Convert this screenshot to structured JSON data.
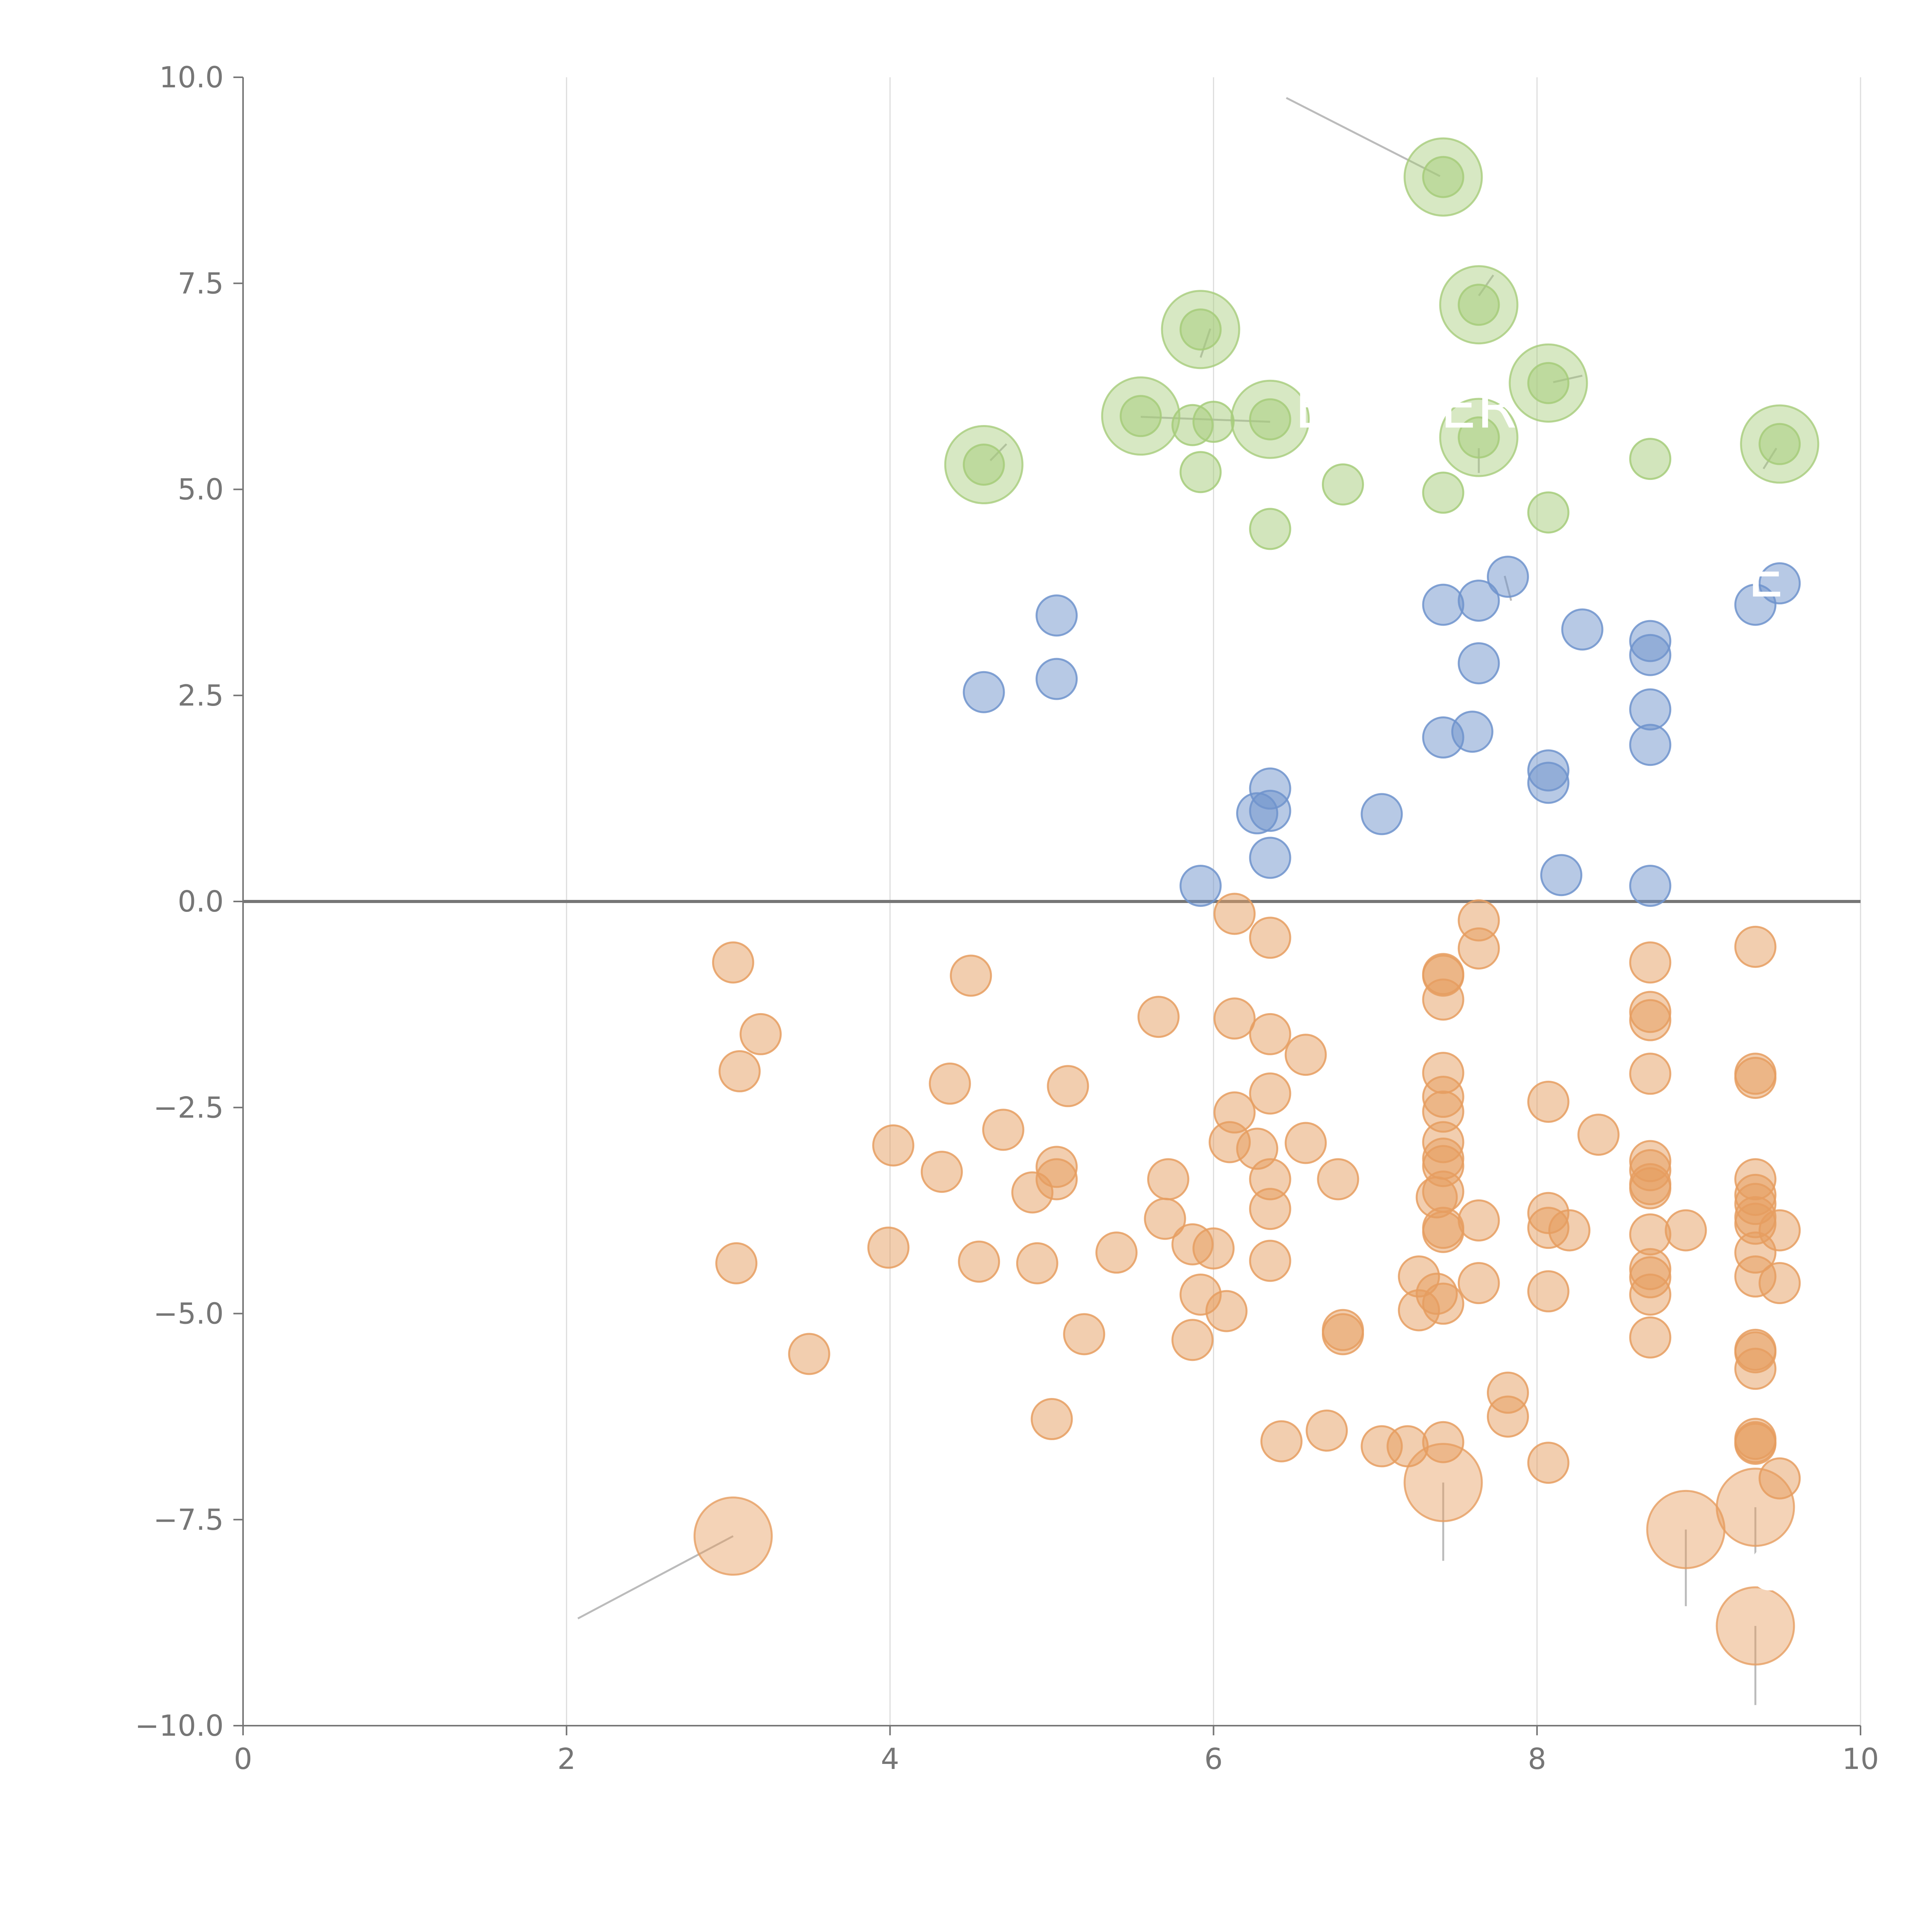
{
  "chart_data": {
    "type": "scatter",
    "title": "",
    "xlabel": "",
    "ylabel": "",
    "xlim": [
      0,
      10
    ],
    "ylim": [
      -10,
      10
    ],
    "grid": "vertical",
    "x_ticks": [
      0,
      2,
      4,
      6,
      8,
      10
    ],
    "x_tick_labels": [
      "0",
      "2",
      "4",
      "6",
      "8",
      "10"
    ],
    "y_ticks": [
      10,
      7.5,
      5,
      2.5,
      0,
      -2.5,
      -5,
      -7.5,
      -10
    ],
    "y_tick_labels": [
      "10.0",
      "7.5",
      "5.0",
      "2.5",
      "0.0",
      "−2.5",
      "−5.0",
      "−7.5",
      "−10.0"
    ],
    "colors": {
      "green": "#a6cc7a",
      "blue": "#6f93cc",
      "orange": "#e69e60",
      "grid": "#dddddd",
      "axis": "#767676",
      "zero_line": "#767676",
      "leader": "#bbbbbb"
    },
    "series": [
      {
        "name": "green",
        "color": "#a6cc7a",
        "points": [
          [
            7.42,
            8.79
          ],
          [
            7.64,
            7.24
          ],
          [
            5.92,
            6.94
          ],
          [
            8.07,
            6.29
          ],
          [
            5.55,
            5.89
          ],
          [
            6.35,
            5.85
          ],
          [
            5.87,
            5.78
          ],
          [
            6.0,
            5.82
          ],
          [
            7.64,
            5.63
          ],
          [
            9.5,
            5.55
          ],
          [
            4.58,
            5.3
          ],
          [
            8.7,
            5.37
          ],
          [
            5.92,
            5.21
          ],
          [
            6.8,
            5.06
          ],
          [
            7.42,
            4.96
          ],
          [
            8.07,
            4.72
          ],
          [
            6.35,
            4.52
          ]
        ]
      },
      {
        "name": "blue",
        "color": "#6f93cc",
        "points": [
          [
            7.82,
            3.94
          ],
          [
            9.5,
            3.86
          ],
          [
            7.64,
            3.65
          ],
          [
            9.35,
            3.6
          ],
          [
            7.42,
            3.6
          ],
          [
            5.03,
            3.47
          ],
          [
            8.28,
            3.3
          ],
          [
            8.7,
            3.16
          ],
          [
            8.7,
            2.99
          ],
          [
            7.64,
            2.89
          ],
          [
            5.03,
            2.7
          ],
          [
            4.58,
            2.54
          ],
          [
            8.7,
            2.33
          ],
          [
            7.6,
            2.06
          ],
          [
            7.42,
            1.99
          ],
          [
            8.7,
            1.9
          ],
          [
            8.07,
            1.59
          ],
          [
            8.07,
            1.44
          ],
          [
            6.35,
            1.37
          ],
          [
            6.35,
            1.1
          ],
          [
            6.27,
            1.07
          ],
          [
            7.04,
            1.06
          ],
          [
            6.35,
            0.53
          ],
          [
            8.15,
            0.32
          ],
          [
            5.92,
            0.19
          ],
          [
            8.7,
            0.19
          ]
        ]
      },
      {
        "name": "orange",
        "color": "#e69e60",
        "points": [
          [
            6.13,
            -0.15
          ],
          [
            7.64,
            -0.23
          ],
          [
            6.35,
            -0.44
          ],
          [
            9.35,
            -0.55
          ],
          [
            7.64,
            -0.57
          ],
          [
            3.03,
            -0.74
          ],
          [
            8.7,
            -0.74
          ],
          [
            4.5,
            -0.9
          ],
          [
            7.42,
            -0.88
          ],
          [
            7.42,
            -0.9
          ],
          [
            7.42,
            -1.19
          ],
          [
            5.66,
            -1.4
          ],
          [
            6.13,
            -1.42
          ],
          [
            8.7,
            -1.34
          ],
          [
            8.7,
            -1.44
          ],
          [
            3.2,
            -1.61
          ],
          [
            6.35,
            -1.61
          ],
          [
            6.57,
            -1.86
          ],
          [
            3.07,
            -2.06
          ],
          [
            7.42,
            -2.08
          ],
          [
            8.7,
            -2.09
          ],
          [
            9.35,
            -2.09
          ],
          [
            9.35,
            -2.14
          ],
          [
            4.37,
            -2.21
          ],
          [
            5.1,
            -2.24
          ],
          [
            6.35,
            -2.33
          ],
          [
            7.42,
            -2.37
          ],
          [
            8.07,
            -2.43
          ],
          [
            6.13,
            -2.56
          ],
          [
            7.42,
            -2.55
          ],
          [
            4.7,
            -2.77
          ],
          [
            8.38,
            -2.83
          ],
          [
            6.1,
            -2.92
          ],
          [
            4.02,
            -2.96
          ],
          [
            6.57,
            -2.93
          ],
          [
            7.42,
            -2.92
          ],
          [
            6.27,
            -3.0
          ],
          [
            7.42,
            -3.12
          ],
          [
            8.7,
            -3.15
          ],
          [
            5.03,
            -3.22
          ],
          [
            7.42,
            -3.21
          ],
          [
            8.7,
            -3.26
          ],
          [
            4.32,
            -3.28
          ],
          [
            5.03,
            -3.37
          ],
          [
            5.72,
            -3.37
          ],
          [
            6.35,
            -3.37
          ],
          [
            6.77,
            -3.37
          ],
          [
            8.7,
            -3.43
          ],
          [
            9.35,
            -3.37
          ],
          [
            7.42,
            -3.52
          ],
          [
            4.88,
            -3.53
          ],
          [
            8.7,
            -3.48
          ],
          [
            9.35,
            -3.56
          ],
          [
            7.38,
            -3.59
          ],
          [
            9.35,
            -3.67
          ],
          [
            6.35,
            -3.73
          ],
          [
            8.07,
            -3.78
          ],
          [
            5.7,
            -3.85
          ],
          [
            7.64,
            -3.87
          ],
          [
            9.35,
            -3.83
          ],
          [
            9.35,
            -3.91
          ],
          [
            7.42,
            -3.96
          ],
          [
            7.42,
            -4.01
          ],
          [
            8.07,
            -3.96
          ],
          [
            8.2,
            -3.99
          ],
          [
            8.92,
            -3.99
          ],
          [
            9.5,
            -3.99
          ],
          [
            8.7,
            -4.04
          ],
          [
            5.87,
            -4.16
          ],
          [
            6.0,
            -4.21
          ],
          [
            3.99,
            -4.2
          ],
          [
            5.4,
            -4.26
          ],
          [
            9.35,
            -4.26
          ],
          [
            4.55,
            -4.37
          ],
          [
            6.35,
            -4.36
          ],
          [
            4.91,
            -4.39
          ],
          [
            3.05,
            -4.39
          ],
          [
            8.7,
            -4.46
          ],
          [
            8.7,
            -4.56
          ],
          [
            7.27,
            -4.55
          ],
          [
            9.35,
            -4.55
          ],
          [
            7.64,
            -4.63
          ],
          [
            9.5,
            -4.63
          ],
          [
            8.7,
            -4.77
          ],
          [
            8.07,
            -4.73
          ],
          [
            5.92,
            -4.77
          ],
          [
            7.38,
            -4.76
          ],
          [
            7.42,
            -4.88
          ],
          [
            6.08,
            -4.97
          ],
          [
            7.27,
            -4.96
          ],
          [
            6.8,
            -5.2
          ],
          [
            6.8,
            -5.25
          ],
          [
            5.2,
            -5.25
          ],
          [
            8.7,
            -5.29
          ],
          [
            5.87,
            -5.32
          ],
          [
            3.5,
            -5.49
          ],
          [
            9.35,
            -5.44
          ],
          [
            9.35,
            -5.47
          ],
          [
            9.35,
            -5.67
          ],
          [
            7.82,
            -5.96
          ],
          [
            7.82,
            -6.25
          ],
          [
            5.0,
            -6.28
          ],
          [
            6.7,
            -6.42
          ],
          [
            6.42,
            -6.55
          ],
          [
            7.42,
            -6.56
          ],
          [
            9.35,
            -6.52
          ],
          [
            9.35,
            -6.56
          ],
          [
            9.35,
            -6.58
          ],
          [
            7.04,
            -6.61
          ],
          [
            7.2,
            -6.61
          ],
          [
            8.07,
            -6.81
          ],
          [
            9.5,
            -7.0
          ]
        ]
      }
    ],
    "large_bubbles": [
      {
        "series": "green",
        "points": [
          [
            7.42,
            8.79
          ],
          [
            7.64,
            7.24
          ],
          [
            5.92,
            6.94
          ],
          [
            8.07,
            6.29
          ],
          [
            5.55,
            5.89
          ],
          [
            6.35,
            5.85
          ],
          [
            7.64,
            5.63
          ],
          [
            9.5,
            5.55
          ],
          [
            4.58,
            5.3
          ]
        ]
      },
      {
        "series": "orange",
        "points": [
          [
            3.03,
            -7.7
          ],
          [
            7.42,
            -7.05
          ],
          [
            8.92,
            -7.62
          ],
          [
            9.35,
            -7.35
          ],
          [
            9.35,
            -8.79
          ]
        ]
      }
    ],
    "annotations": [
      {
        "text": "B",
        "x": 6.5,
        "y": 5.75
      },
      {
        "text": "ER",
        "x": 7.4,
        "y": 5.75
      },
      {
        "text": "E",
        "x": 9.3,
        "y": 3.7
      },
      {
        "text": "OS",
        "x": 9.3,
        "y": -8.35
      }
    ],
    "leader_lines": [
      [
        [
          6.45,
          9.75
        ],
        [
          7.4,
          8.8
        ]
      ],
      [
        [
          5.92,
          6.6
        ],
        [
          5.98,
          6.95
        ]
      ],
      [
        [
          7.64,
          7.35
        ],
        [
          7.73,
          7.6
        ]
      ],
      [
        [
          8.1,
          6.3
        ],
        [
          8.28,
          6.38
        ]
      ],
      [
        [
          5.55,
          5.88
        ],
        [
          6.35,
          5.82
        ]
      ],
      [
        [
          9.4,
          5.25
        ],
        [
          9.48,
          5.5
        ]
      ],
      [
        [
          4.62,
          5.35
        ],
        [
          4.72,
          5.55
        ]
      ],
      [
        [
          7.8,
          3.95
        ],
        [
          7.84,
          3.65
        ]
      ],
      [
        [
          7.64,
          5.5
        ],
        [
          7.64,
          5.2
        ]
      ],
      [
        [
          2.07,
          -8.7
        ],
        [
          3.03,
          -7.7
        ]
      ],
      [
        [
          7.42,
          -7.05
        ],
        [
          7.42,
          -8.0
        ]
      ],
      [
        [
          8.92,
          -7.62
        ],
        [
          8.92,
          -8.55
        ]
      ],
      [
        [
          9.35,
          -7.35
        ],
        [
          9.35,
          -8.1
        ]
      ],
      [
        [
          9.35,
          -8.79
        ],
        [
          9.35,
          -9.75
        ]
      ]
    ]
  }
}
